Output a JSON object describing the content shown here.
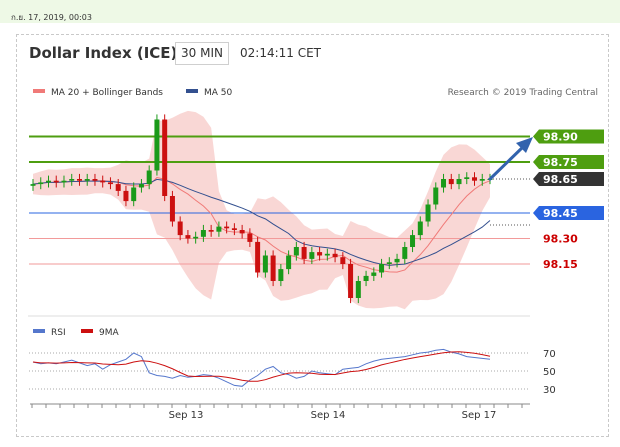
{
  "header": {
    "date": "ก.ย. 17, 2019, 00:03",
    "title": "Dollar Index (ICE)",
    "timeframe": "30 MIN",
    "time": "02:14:11 CET"
  },
  "colors": {
    "green_level": "#4e9e10",
    "blue_level": "#2a64e0",
    "red_level": "#cc0000",
    "current_price": "#333333",
    "up_candle": "#1a9a1a",
    "down_candle": "#cc1010",
    "bollinger": "#f7c9c7",
    "ma20": "#f07a78",
    "ma50": "#33508f",
    "rsi": "#5577cc",
    "rsi_ma": "#cc1010",
    "arrow": "#3263ad"
  },
  "chart_data": {
    "type": "candlestick",
    "legend": [
      {
        "name": "MA 20 + Bollinger Bands",
        "color": "#f07a78"
      },
      {
        "name": "MA 50",
        "color": "#33508f"
      }
    ],
    "credit": "Research © 2019 Trading Central",
    "x_ticks": [
      "Sep 13",
      "Sep 14",
      "Sep 17"
    ],
    "levels": [
      {
        "label": "98.90",
        "value": 98.9,
        "kind": "resistance"
      },
      {
        "label": "98.75",
        "value": 98.75,
        "kind": "resistance"
      },
      {
        "label": "98.65",
        "value": 98.65,
        "kind": "last"
      },
      {
        "label": "98.45",
        "value": 98.45,
        "kind": "pivot"
      },
      {
        "label": "98.30",
        "value": 98.3,
        "kind": "support"
      },
      {
        "label": "98.15",
        "value": 98.15,
        "kind": "support"
      }
    ],
    "price_close": [
      98.62,
      98.63,
      98.64,
      98.63,
      98.64,
      98.65,
      98.64,
      98.65,
      98.64,
      98.63,
      98.62,
      98.58,
      98.52,
      98.6,
      98.62,
      98.7,
      99.0,
      98.55,
      98.4,
      98.32,
      98.3,
      98.31,
      98.35,
      98.34,
      98.37,
      98.36,
      98.35,
      98.33,
      98.28,
      98.1,
      98.2,
      98.05,
      98.12,
      98.2,
      98.25,
      98.18,
      98.22,
      98.2,
      98.21,
      98.19,
      98.15,
      97.95,
      98.05,
      98.08,
      98.1,
      98.15,
      98.16,
      98.18,
      98.25,
      98.32,
      98.4,
      98.5,
      98.6,
      98.65,
      98.62,
      98.65,
      98.66,
      98.64,
      98.65,
      98.65
    ],
    "rsi": [
      60,
      58,
      59,
      58,
      60,
      62,
      59,
      56,
      58,
      52,
      57,
      60,
      63,
      70,
      66,
      48,
      45,
      44,
      42,
      45,
      43,
      44,
      46,
      45,
      42,
      38,
      34,
      33,
      40,
      45,
      52,
      55,
      48,
      46,
      42,
      44,
      50,
      48,
      47,
      46,
      52,
      53,
      54,
      58,
      61,
      63,
      64,
      65,
      66,
      68,
      70,
      71,
      73,
      74,
      71,
      69,
      66,
      65,
      64,
      63
    ],
    "rsi_ticks": [
      70,
      50,
      30
    ],
    "rsi_legend": [
      {
        "name": "RSI",
        "color": "#5577cc"
      },
      {
        "name": "9MA",
        "color": "#cc1010"
      }
    ]
  }
}
